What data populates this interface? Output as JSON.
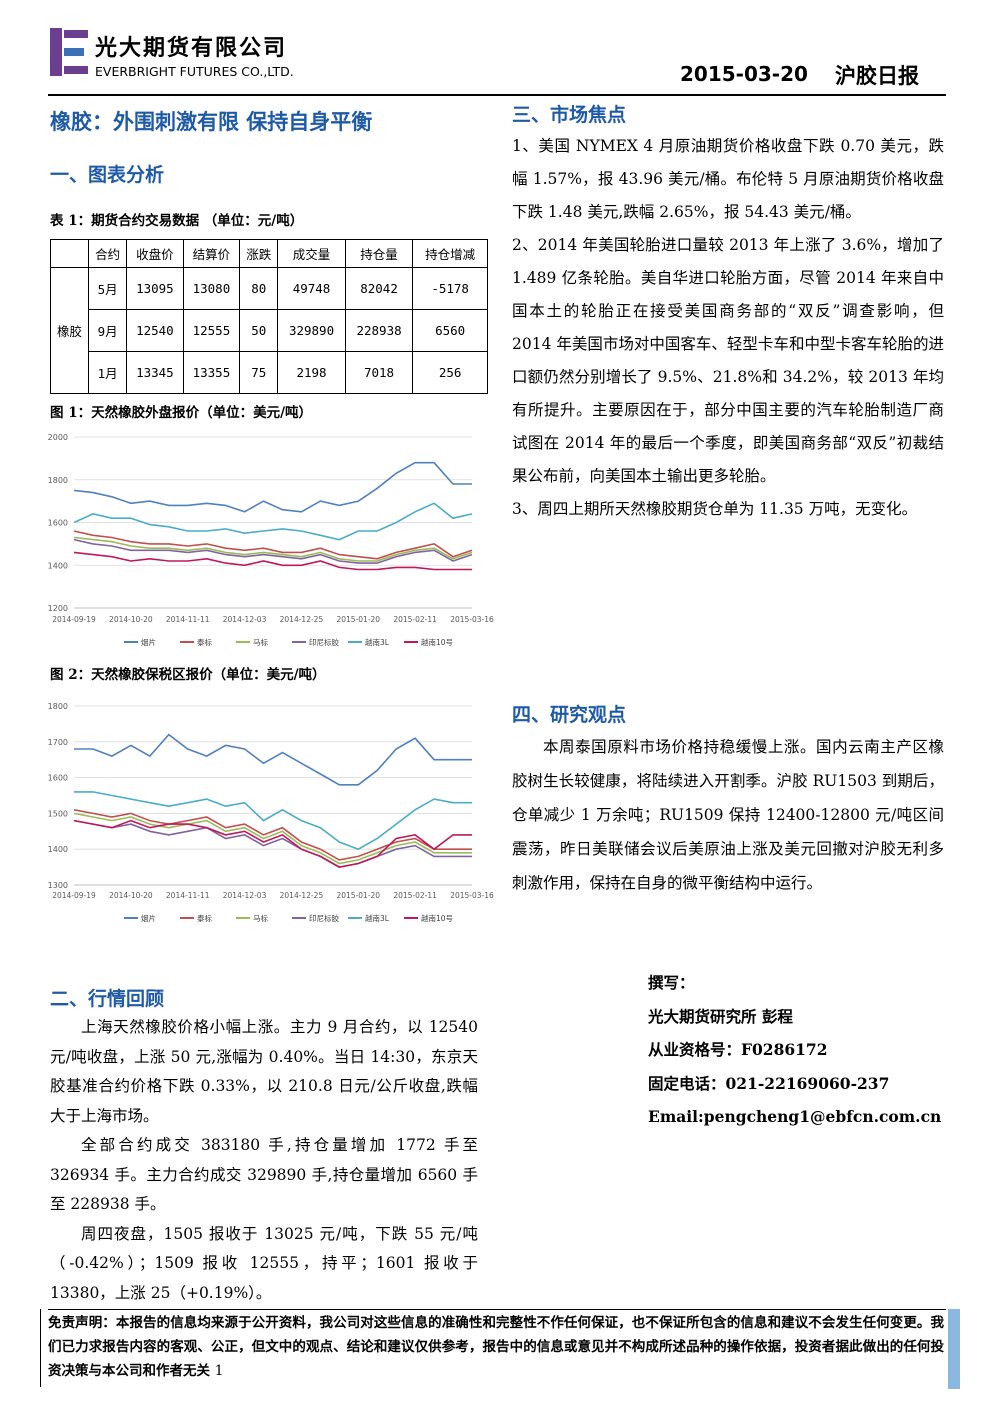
{
  "header": {
    "company_cn": "光大期货有限公司",
    "company_en": "EVERBRIGHT FUTURES CO.,LTD.",
    "date": "2015-03-20",
    "report": "沪胶日报"
  },
  "title": "橡胶：外围刺激有限 保持自身平衡",
  "section1": {
    "heading": "一、图表分析",
    "table_caption": "表 1：期货合约交易数据 （单位：元/吨）",
    "table": {
      "header": [
        "合约",
        "收盘价",
        "结算价",
        "涨跌",
        "成交量",
        "持仓量",
        "持仓增减"
      ],
      "product": "橡胶",
      "rows": [
        [
          "5月",
          13095,
          13080,
          80,
          49748,
          82042,
          -5178
        ],
        [
          "9月",
          12540,
          12555,
          50,
          329890,
          228938,
          6560
        ],
        [
          "1月",
          13345,
          13355,
          75,
          2198,
          7018,
          256
        ]
      ]
    }
  },
  "chart_data": [
    {
      "type": "line",
      "title": "图 1：天然橡胶外盘报价（单位：美元/吨）",
      "categories": [
        "2014-09-19",
        null,
        null,
        "2014-10-20",
        null,
        null,
        "2014-11-11",
        null,
        null,
        "2014-12-03",
        null,
        null,
        "2014-12-25",
        null,
        null,
        "2015-01-20",
        null,
        null,
        "2015-02-11",
        null,
        null,
        "2015-03-16"
      ],
      "ylim": [
        1200,
        2000
      ],
      "yticks": [
        1200,
        1400,
        1600,
        1800,
        2000
      ],
      "grid": true,
      "series": [
        {
          "name": "烟片",
          "color": "#4f81bd",
          "values": [
            1750,
            1740,
            1720,
            1690,
            1700,
            1680,
            1680,
            1690,
            1680,
            1650,
            1700,
            1660,
            1650,
            1700,
            1680,
            1700,
            1760,
            1830,
            1880,
            1880,
            1780,
            1780
          ]
        },
        {
          "name": "泰标",
          "color": "#c0504d",
          "values": [
            1560,
            1540,
            1530,
            1510,
            1500,
            1500,
            1490,
            1500,
            1480,
            1470,
            1480,
            1460,
            1460,
            1480,
            1450,
            1440,
            1430,
            1460,
            1480,
            1500,
            1440,
            1470
          ]
        },
        {
          "name": "马标",
          "color": "#9bbb59",
          "values": [
            1530,
            1520,
            1510,
            1490,
            1480,
            1480,
            1470,
            1480,
            1460,
            1450,
            1460,
            1450,
            1440,
            1460,
            1430,
            1420,
            1420,
            1450,
            1470,
            1480,
            1430,
            1460
          ]
        },
        {
          "name": "印尼标胶",
          "color": "#8064a2",
          "values": [
            1520,
            1500,
            1490,
            1470,
            1470,
            1470,
            1460,
            1470,
            1450,
            1440,
            1450,
            1440,
            1430,
            1450,
            1420,
            1410,
            1410,
            1440,
            1460,
            1470,
            1420,
            1450
          ]
        },
        {
          "name": "越南3L",
          "color": "#4bacc6",
          "values": [
            1600,
            1640,
            1620,
            1620,
            1590,
            1580,
            1560,
            1560,
            1570,
            1550,
            1560,
            1570,
            1560,
            1540,
            1520,
            1560,
            1560,
            1600,
            1650,
            1690,
            1620,
            1640
          ]
        },
        {
          "name": "越南10号",
          "color": "#c0185a",
          "values": [
            1460,
            1450,
            1440,
            1420,
            1430,
            1420,
            1420,
            1430,
            1410,
            1400,
            1420,
            1400,
            1400,
            1420,
            1390,
            1380,
            1380,
            1390,
            1390,
            1380,
            1380,
            1380
          ]
        }
      ]
    },
    {
      "type": "line",
      "title": "图 2：天然橡胶保税区报价（单位：美元/吨）",
      "categories": [
        "2014-09-19",
        null,
        null,
        "2014-10-20",
        null,
        null,
        "2014-11-11",
        null,
        null,
        "2014-12-03",
        null,
        null,
        "2014-12-25",
        null,
        null,
        "2015-01-20",
        null,
        null,
        "2015-02-11",
        null,
        null,
        "2015-03-16"
      ],
      "ylim": [
        1300,
        1800
      ],
      "yticks": [
        1300,
        1400,
        1500,
        1600,
        1700,
        1800
      ],
      "grid": true,
      "series": [
        {
          "name": "烟片",
          "color": "#4f81bd",
          "values": [
            1680,
            1680,
            1660,
            1690,
            1660,
            1720,
            1680,
            1660,
            1690,
            1680,
            1640,
            1670,
            1640,
            1610,
            1580,
            1580,
            1620,
            1680,
            1710,
            1650,
            1650,
            1650
          ]
        },
        {
          "name": "泰标",
          "color": "#c0504d",
          "values": [
            1510,
            1500,
            1490,
            1500,
            1480,
            1470,
            1480,
            1490,
            1460,
            1470,
            1440,
            1460,
            1420,
            1400,
            1370,
            1380,
            1400,
            1420,
            1430,
            1400,
            1400,
            1400
          ]
        },
        {
          "name": "马标",
          "color": "#9bbb59",
          "values": [
            1500,
            1490,
            1480,
            1490,
            1470,
            1460,
            1470,
            1480,
            1450,
            1460,
            1430,
            1450,
            1410,
            1390,
            1360,
            1370,
            1390,
            1410,
            1420,
            1390,
            1390,
            1390
          ]
        },
        {
          "name": "印尼标胶",
          "color": "#8064a2",
          "values": [
            1480,
            1470,
            1460,
            1470,
            1450,
            1440,
            1450,
            1460,
            1430,
            1440,
            1410,
            1430,
            1400,
            1380,
            1350,
            1360,
            1380,
            1400,
            1410,
            1380,
            1380,
            1380
          ]
        },
        {
          "name": "越南3L",
          "color": "#4bacc6",
          "values": [
            1560,
            1560,
            1550,
            1540,
            1530,
            1520,
            1530,
            1540,
            1520,
            1530,
            1480,
            1510,
            1480,
            1460,
            1420,
            1400,
            1430,
            1470,
            1510,
            1540,
            1530,
            1530
          ]
        },
        {
          "name": "越南10号",
          "color": "#c0185a",
          "values": [
            1480,
            1470,
            1460,
            1480,
            1460,
            1470,
            1470,
            1460,
            1440,
            1450,
            1420,
            1440,
            1400,
            1380,
            1350,
            1360,
            1380,
            1430,
            1440,
            1400,
            1440,
            1440
          ]
        }
      ]
    }
  ],
  "section2": {
    "heading": "二、行情回顾",
    "paragraphs": [
      "上海天然橡胶价格小幅上涨。主力 9 月合约，以 12540 元/吨收盘，上涨 50 元,涨幅为 0.40%。当日 14:30，东京天胶基准合约价格下跌 0.33%，以 210.8 日元/公斤收盘,跌幅大于上海市场。",
      "全部合约成交 383180 手,持仓量增加 1772 手至 326934 手。主力合约成交 329890 手,持仓量增加 6560 手至 228938 手。",
      "周四夜盘，1505 报收于 13025 元/吨，下跌 55 元/吨（-0.42%）；1509 报收 12555，持平；1601 报收于 13380，上涨 25（+0.19%）。"
    ]
  },
  "section3": {
    "heading": "三、市场焦点",
    "items": [
      "1、美国 NYMEX 4 月原油期货价格收盘下跌 0.70 美元，跌幅 1.57%，报 43.96 美元/桶。布伦特 5 月原油期货价格收盘下跌 1.48 美元,跌幅 2.65%，报 54.43 美元/桶。",
      "2、2014 年美国轮胎进口量较 2013 年上涨了 3.6%，增加了 1.489 亿条轮胎。美自华进口轮胎方面，尽管 2014 年来自中国本土的轮胎正在接受美国商务部的“双反”调查影响，但 2014 年美国市场对中国客车、轻型卡车和中型卡客车轮胎的进口额仍然分别增长了 9.5%、21.8%和 34.2%，较 2013 年均有所提升。主要原因在于，部分中国主要的汽车轮胎制造厂商试图在 2014 年的最后一个季度，即美国商务部“双反”初裁结果公布前，向美国本土输出更多轮胎。",
      "3、周四上期所天然橡胶期货仓单为 11.35 万吨，无变化。"
    ]
  },
  "section4": {
    "heading": "四、研究观点",
    "paragraphs": [
      "本周泰国原料市场价格持稳缓慢上涨。国内云南主产区橡胶树生长较健康，将陆续进入开割季。沪胶 RU1503 到期后，仓单减少 1 万余吨；RU1509 保持 12400-12800 元/吨区间震荡，昨日美联储会议后美原油上涨及美元回撤对沪胶无利多刺激作用，保持在自身的微平衡结构中运行。"
    ]
  },
  "author": {
    "label": "撰写：",
    "org": "光大期货研究所 彭程",
    "license": "从业资格号：F0286172",
    "phone": "固定电话：021-22169060-237",
    "email": "Email:pengcheng1@ebfcn.com.cn"
  },
  "footer": {
    "disclaimer": "免责声明：本报告的信息均来源于公开资料，我公司对这些信息的准确性和完整性不作任何保证，也不保证所包含的信息和建议不会发生任何变更。我们已力求报告内容的客观、公正，但文中的观点、结论和建议仅供参考，报告中的信息或意见并不构成所述品种的操作依据，投资者据此做出的任何投资决策与本公司和作者无关",
    "page": 1
  }
}
